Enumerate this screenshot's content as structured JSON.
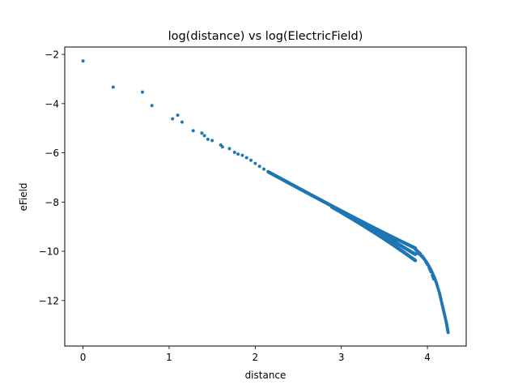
{
  "chart_data": {
    "type": "scatter",
    "title": "log(distance) vs log(ElectricField)",
    "xlabel": "distance",
    "ylabel": "eField",
    "xlim": [
      -0.212,
      4.45
    ],
    "ylim": [
      -13.85,
      -1.7
    ],
    "xticks": [
      0,
      1,
      2,
      3,
      4
    ],
    "yticks": [
      -2,
      -4,
      -6,
      -8,
      -10,
      -12
    ],
    "xtick_labels": [
      "0",
      "1",
      "2",
      "3",
      "4"
    ],
    "ytick_labels": [
      "−2",
      "−4",
      "−6",
      "−8",
      "−10",
      "−12"
    ],
    "grid": false,
    "marker_color": "#1f77b4",
    "points": [
      [
        0.0,
        -2.27
      ],
      [
        0.35,
        -3.33
      ],
      [
        0.69,
        -3.53
      ],
      [
        0.8,
        -4.08
      ],
      [
        1.04,
        -4.62
      ],
      [
        1.1,
        -4.47
      ],
      [
        1.15,
        -4.75
      ],
      [
        1.28,
        -5.1
      ],
      [
        1.38,
        -5.2
      ],
      [
        1.41,
        -5.3
      ],
      [
        1.45,
        -5.45
      ],
      [
        1.5,
        -5.5
      ],
      [
        1.6,
        -5.68
      ],
      [
        1.62,
        -5.76
      ],
      [
        1.7,
        -5.83
      ],
      [
        1.76,
        -5.98
      ],
      [
        1.8,
        -6.05
      ],
      [
        1.85,
        -6.1
      ],
      [
        1.9,
        -6.2
      ],
      [
        1.95,
        -6.3
      ],
      [
        2.0,
        -6.43
      ],
      [
        2.05,
        -6.55
      ],
      [
        2.1,
        -6.66
      ],
      [
        2.15,
        -6.77
      ]
    ],
    "band": {
      "x_start": 2.15,
      "x_end": 3.86,
      "y_at_start": -6.77,
      "y_at_end": -10.0,
      "spread_end": 0.5
    },
    "tail": [
      [
        3.88,
        -10.05
      ],
      [
        3.92,
        -10.15
      ],
      [
        3.96,
        -10.3
      ],
      [
        4.0,
        -10.5
      ],
      [
        4.04,
        -10.75
      ],
      [
        4.08,
        -11.05
      ],
      [
        4.11,
        -11.35
      ],
      [
        4.14,
        -11.7
      ],
      [
        4.16,
        -12.0
      ],
      [
        4.18,
        -12.3
      ],
      [
        4.2,
        -12.6
      ],
      [
        4.22,
        -12.9
      ],
      [
        4.23,
        -13.1
      ],
      [
        4.24,
        -13.3
      ]
    ]
  }
}
